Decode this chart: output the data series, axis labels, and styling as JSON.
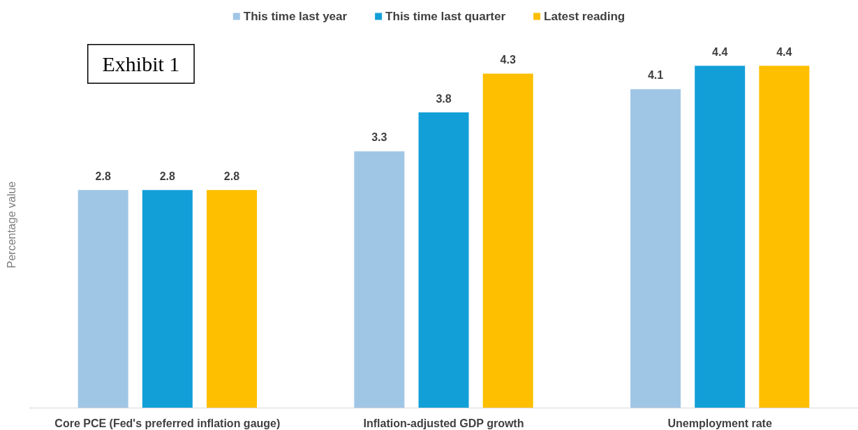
{
  "chart_data": {
    "type": "bar",
    "ylabel": "Percentage value",
    "annotations": [
      "Exhibit 1"
    ],
    "categories": [
      "Core PCE (Fed's preferred inflation gauge)",
      "Inflation-adjusted GDP growth",
      "Unemployment rate"
    ],
    "series": [
      {
        "name": "This time last year",
        "color": "#a0c6e6",
        "values": [
          2.8,
          3.3,
          4.1
        ]
      },
      {
        "name": "This time last quarter",
        "color": "#129fd8",
        "values": [
          2.8,
          3.8,
          4.4
        ]
      },
      {
        "name": "Latest reading",
        "color": "#fdbf00",
        "values": [
          2.8,
          4.3,
          4.4
        ]
      }
    ],
    "data_labels": true,
    "grid": false,
    "legend": "top"
  }
}
